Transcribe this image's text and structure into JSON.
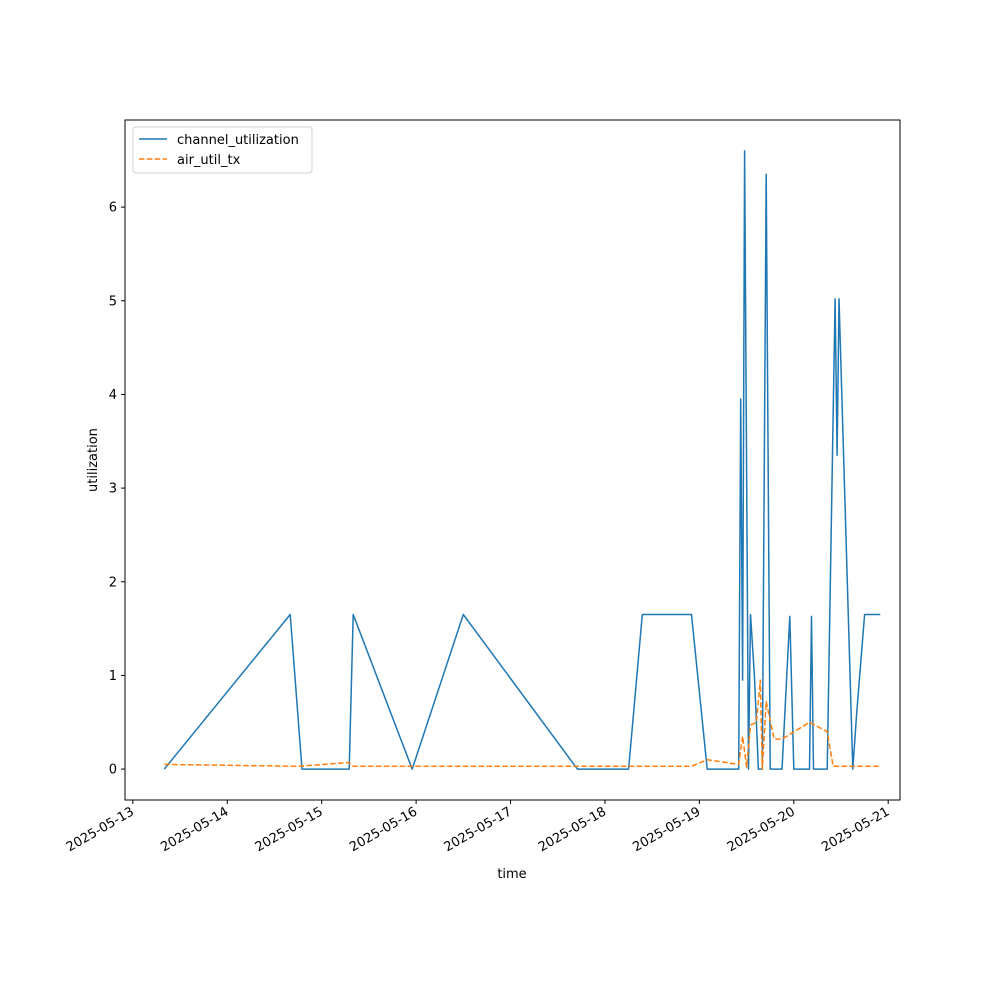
{
  "chart_data": {
    "type": "line",
    "title": "",
    "xlabel": "time",
    "ylabel": "utilization",
    "x_axis": {
      "scale": "time",
      "range": [
        "2025-05-12T22:00",
        "2025-05-21T03:00"
      ],
      "ticks": [
        "2025-05-13",
        "2025-05-14",
        "2025-05-15",
        "2025-05-16",
        "2025-05-17",
        "2025-05-18",
        "2025-05-19",
        "2025-05-20",
        "2025-05-21"
      ]
    },
    "y_axis": {
      "range": [
        -0.33,
        6.93
      ],
      "ticks": [
        0,
        1,
        2,
        3,
        4,
        5,
        6
      ]
    },
    "grid": false,
    "legend": {
      "position": "top-left"
    },
    "series": [
      {
        "name": "channel_utilization",
        "color": "#1f77b4",
        "style": "solid",
        "points": [
          [
            "2025-05-13T08:00",
            0.0
          ],
          [
            "2025-05-14T16:00",
            1.65
          ],
          [
            "2025-05-14T19:00",
            0.0
          ],
          [
            "2025-05-15T07:00",
            0.0
          ],
          [
            "2025-05-15T08:00",
            1.65
          ],
          [
            "2025-05-15T23:00",
            0.0
          ],
          [
            "2025-05-16T12:00",
            1.65
          ],
          [
            "2025-05-17T17:00",
            0.0
          ],
          [
            "2025-05-18T06:00",
            0.0
          ],
          [
            "2025-05-18T09:30",
            1.65
          ],
          [
            "2025-05-18T22:00",
            1.65
          ],
          [
            "2025-05-19T02:00",
            0.0
          ],
          [
            "2025-05-19T10:00",
            0.0
          ],
          [
            "2025-05-19T10:30",
            3.95
          ],
          [
            "2025-05-19T11:00",
            0.95
          ],
          [
            "2025-05-19T11:30",
            6.6
          ],
          [
            "2025-05-19T12:30",
            0.0
          ],
          [
            "2025-05-19T13:00",
            1.65
          ],
          [
            "2025-05-19T14:00",
            1.0
          ],
          [
            "2025-05-19T15:00",
            0.0
          ],
          [
            "2025-05-19T16:00",
            0.0
          ],
          [
            "2025-05-19T17:00",
            6.35
          ],
          [
            "2025-05-19T18:00",
            0.0
          ],
          [
            "2025-05-19T21:00",
            0.0
          ],
          [
            "2025-05-19T23:00",
            1.63
          ],
          [
            "2025-05-20T00:00",
            0.0
          ],
          [
            "2025-05-20T04:00",
            0.0
          ],
          [
            "2025-05-20T04:30",
            1.63
          ],
          [
            "2025-05-20T05:00",
            0.0
          ],
          [
            "2025-05-20T08:30",
            0.0
          ],
          [
            "2025-05-20T10:30",
            5.02
          ],
          [
            "2025-05-20T11:00",
            3.35
          ],
          [
            "2025-05-20T11:30",
            5.02
          ],
          [
            "2025-05-20T15:00",
            0.0
          ],
          [
            "2025-05-20T16:00",
            0.6
          ],
          [
            "2025-05-20T18:00",
            1.65
          ],
          [
            "2025-05-20T22:00",
            1.65
          ]
        ]
      },
      {
        "name": "air_util_tx",
        "color": "#ff7f0e",
        "style": "dashed",
        "points": [
          [
            "2025-05-13T08:00",
            0.05
          ],
          [
            "2025-05-14T18:00",
            0.03
          ],
          [
            "2025-05-15T07:00",
            0.07
          ],
          [
            "2025-05-15T08:00",
            0.03
          ],
          [
            "2025-05-16T12:00",
            0.03
          ],
          [
            "2025-05-18T22:00",
            0.03
          ],
          [
            "2025-05-19T02:00",
            0.1
          ],
          [
            "2025-05-19T10:00",
            0.05
          ],
          [
            "2025-05-19T11:00",
            0.35
          ],
          [
            "2025-05-19T12:00",
            0.02
          ],
          [
            "2025-05-19T13:00",
            0.47
          ],
          [
            "2025-05-19T14:30",
            0.5
          ],
          [
            "2025-05-19T15:30",
            0.95
          ],
          [
            "2025-05-19T16:00",
            0.0
          ],
          [
            "2025-05-19T17:00",
            0.72
          ],
          [
            "2025-05-19T19:00",
            0.32
          ],
          [
            "2025-05-19T21:00",
            0.32
          ],
          [
            "2025-05-20T04:00",
            0.5
          ],
          [
            "2025-05-20T08:30",
            0.4
          ],
          [
            "2025-05-20T10:00",
            0.03
          ],
          [
            "2025-05-20T22:00",
            0.03
          ]
        ]
      }
    ]
  }
}
